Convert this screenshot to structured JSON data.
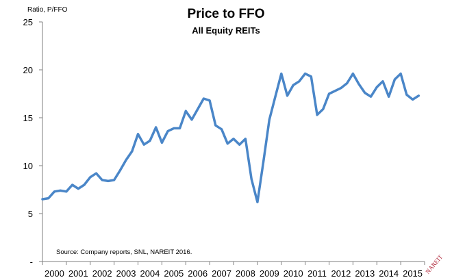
{
  "chart_data": {
    "type": "line",
    "title": "Price to FFO",
    "subtitle": "All Equity REITs",
    "ylabel": "Ratio, P/FFO",
    "xlabel": "",
    "ylim": [
      0,
      25
    ],
    "yticks": [
      0,
      5,
      10,
      15,
      20,
      25
    ],
    "ytick_labels": [
      "-",
      "5",
      "10",
      "15",
      "20",
      "25"
    ],
    "x_categories": [
      "2000",
      "2001",
      "2002",
      "2003",
      "2004",
      "2005",
      "2006",
      "2007",
      "2008",
      "2009",
      "2010",
      "2011",
      "2012",
      "2013",
      "2014",
      "2015"
    ],
    "x_range": [
      2000,
      2016
    ],
    "grid": false,
    "annotation": "Source: Company reports, SNL, NAREIT 2016.",
    "series": [
      {
        "name": "Price to FFO",
        "color": "#4a86c8",
        "x": [
          2000.0,
          2000.25,
          2000.5,
          2000.75,
          2001.0,
          2001.25,
          2001.5,
          2001.75,
          2002.0,
          2002.25,
          2002.5,
          2002.75,
          2003.0,
          2003.25,
          2003.5,
          2003.75,
          2004.0,
          2004.25,
          2004.5,
          2004.75,
          2005.0,
          2005.25,
          2005.5,
          2005.75,
          2006.0,
          2006.25,
          2006.5,
          2006.75,
          2007.0,
          2007.25,
          2007.5,
          2007.75,
          2008.0,
          2008.25,
          2008.5,
          2008.75,
          2009.0,
          2009.25,
          2009.5,
          2009.75,
          2010.0,
          2010.25,
          2010.5,
          2010.75,
          2011.0,
          2011.25,
          2011.5,
          2011.75,
          2012.0,
          2012.25,
          2012.5,
          2012.75,
          2013.0,
          2013.25,
          2013.5,
          2013.75,
          2014.0,
          2014.25,
          2014.5,
          2014.75,
          2015.0,
          2015.25,
          2015.5,
          2015.75
        ],
        "values": [
          6.5,
          6.6,
          7.3,
          7.4,
          7.3,
          8.0,
          7.6,
          8.0,
          8.8,
          9.2,
          8.5,
          8.4,
          8.5,
          9.5,
          10.6,
          11.5,
          13.3,
          12.2,
          12.6,
          14.0,
          12.4,
          13.6,
          13.9,
          13.9,
          15.7,
          14.8,
          15.9,
          17.0,
          16.8,
          14.2,
          13.8,
          12.3,
          12.8,
          12.2,
          12.8,
          8.6,
          6.2,
          10.4,
          14.8,
          17.2,
          19.6,
          17.3,
          18.4,
          18.8,
          19.6,
          19.3,
          15.3,
          15.9,
          17.5,
          17.8,
          18.1,
          18.6,
          19.6,
          18.5,
          17.6,
          17.2,
          18.2,
          18.8,
          17.2,
          19.0,
          19.6,
          17.4,
          16.9,
          17.3
        ]
      }
    ]
  },
  "logo": {
    "text": "NAREIT"
  }
}
